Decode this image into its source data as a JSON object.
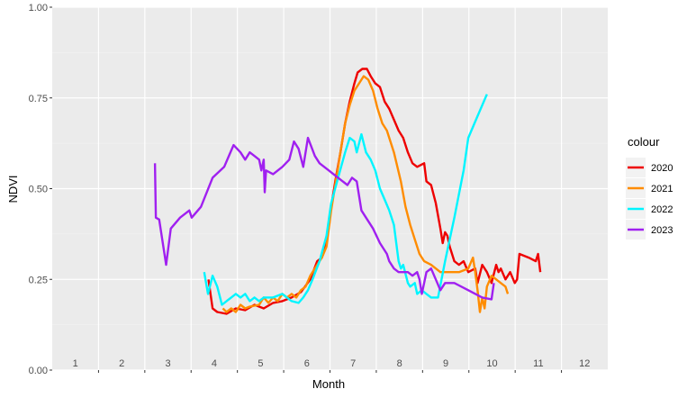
{
  "chart_data": {
    "type": "line",
    "ylabel": "NDVI",
    "xlabel": "Month",
    "ylim": [
      0.0,
      1.0
    ],
    "y_ticks": [
      {
        "value": 0.0,
        "label": "0.00"
      },
      {
        "value": 0.25,
        "label": "0.25"
      },
      {
        "value": 0.5,
        "label": "0.50"
      },
      {
        "value": 0.75,
        "label": "0.75"
      },
      {
        "value": 1.0,
        "label": "1.00"
      }
    ],
    "month_labels": [
      "1",
      "2",
      "3",
      "4",
      "5",
      "6",
      "7",
      "8",
      "9",
      "10",
      "11",
      "12"
    ],
    "xlim": [
      0.05,
      12.0
    ],
    "grid": true,
    "background": "#ebebeb",
    "legend": {
      "title": "colour",
      "position": "right"
    },
    "series": [
      {
        "name": "2020",
        "color": "#ee0000",
        "points": [
          [
            3.41,
            0.25
          ],
          [
            3.5,
            0.17
          ],
          [
            3.6,
            0.16
          ],
          [
            3.8,
            0.155
          ],
          [
            4.0,
            0.17
          ],
          [
            4.2,
            0.165
          ],
          [
            4.4,
            0.18
          ],
          [
            4.6,
            0.17
          ],
          [
            4.8,
            0.185
          ],
          [
            5.0,
            0.19
          ],
          [
            5.2,
            0.2
          ],
          [
            5.4,
            0.215
          ],
          [
            5.6,
            0.25
          ],
          [
            5.75,
            0.3
          ],
          [
            5.85,
            0.31
          ],
          [
            5.95,
            0.36
          ],
          [
            6.05,
            0.45
          ],
          [
            6.15,
            0.53
          ],
          [
            6.25,
            0.6
          ],
          [
            6.35,
            0.68
          ],
          [
            6.45,
            0.74
          ],
          [
            6.55,
            0.79
          ],
          [
            6.62,
            0.82
          ],
          [
            6.72,
            0.83
          ],
          [
            6.82,
            0.83
          ],
          [
            6.9,
            0.81
          ],
          [
            7.0,
            0.79
          ],
          [
            7.1,
            0.78
          ],
          [
            7.2,
            0.74
          ],
          [
            7.3,
            0.72
          ],
          [
            7.4,
            0.69
          ],
          [
            7.5,
            0.66
          ],
          [
            7.6,
            0.64
          ],
          [
            7.7,
            0.6
          ],
          [
            7.8,
            0.57
          ],
          [
            7.9,
            0.56
          ],
          [
            8.05,
            0.57
          ],
          [
            8.1,
            0.52
          ],
          [
            8.2,
            0.51
          ],
          [
            8.3,
            0.46
          ],
          [
            8.4,
            0.39
          ],
          [
            8.45,
            0.35
          ],
          [
            8.5,
            0.38
          ],
          [
            8.55,
            0.37
          ],
          [
            8.6,
            0.34
          ],
          [
            8.7,
            0.3
          ],
          [
            8.8,
            0.29
          ],
          [
            8.9,
            0.3
          ],
          [
            9.0,
            0.27
          ],
          [
            9.15,
            0.28
          ],
          [
            9.2,
            0.24
          ],
          [
            9.3,
            0.29
          ],
          [
            9.4,
            0.27
          ],
          [
            9.5,
            0.24
          ],
          [
            9.6,
            0.29
          ],
          [
            9.65,
            0.27
          ],
          [
            9.7,
            0.28
          ],
          [
            9.8,
            0.25
          ],
          [
            9.9,
            0.27
          ],
          [
            10.0,
            0.24
          ],
          [
            10.05,
            0.25
          ],
          [
            10.1,
            0.32
          ],
          [
            10.3,
            0.31
          ],
          [
            10.45,
            0.3
          ],
          [
            10.5,
            0.32
          ],
          [
            10.55,
            0.27
          ]
        ]
      },
      {
        "name": "2021",
        "color": "#ff8c00",
        "points": [
          [
            3.72,
            0.17
          ],
          [
            3.8,
            0.16
          ],
          [
            3.9,
            0.17
          ],
          [
            4.0,
            0.16
          ],
          [
            4.1,
            0.18
          ],
          [
            4.2,
            0.17
          ],
          [
            4.3,
            0.175
          ],
          [
            4.5,
            0.18
          ],
          [
            4.6,
            0.2
          ],
          [
            4.7,
            0.185
          ],
          [
            4.8,
            0.2
          ],
          [
            4.9,
            0.19
          ],
          [
            5.0,
            0.21
          ],
          [
            5.1,
            0.2
          ],
          [
            5.2,
            0.21
          ],
          [
            5.3,
            0.2
          ],
          [
            5.4,
            0.22
          ],
          [
            5.5,
            0.23
          ],
          [
            5.6,
            0.26
          ],
          [
            5.75,
            0.29
          ],
          [
            5.85,
            0.31
          ],
          [
            5.95,
            0.34
          ],
          [
            6.05,
            0.44
          ],
          [
            6.15,
            0.52
          ],
          [
            6.25,
            0.6
          ],
          [
            6.35,
            0.68
          ],
          [
            6.45,
            0.73
          ],
          [
            6.55,
            0.77
          ],
          [
            6.65,
            0.79
          ],
          [
            6.75,
            0.81
          ],
          [
            6.85,
            0.8
          ],
          [
            6.95,
            0.77
          ],
          [
            7.05,
            0.72
          ],
          [
            7.15,
            0.68
          ],
          [
            7.25,
            0.66
          ],
          [
            7.4,
            0.6
          ],
          [
            7.55,
            0.52
          ],
          [
            7.65,
            0.45
          ],
          [
            7.75,
            0.4
          ],
          [
            7.85,
            0.36
          ],
          [
            7.95,
            0.32
          ],
          [
            8.05,
            0.3
          ],
          [
            8.2,
            0.29
          ],
          [
            8.4,
            0.27
          ],
          [
            8.6,
            0.27
          ],
          [
            8.8,
            0.27
          ],
          [
            9.0,
            0.28
          ],
          [
            9.1,
            0.31
          ],
          [
            9.15,
            0.27
          ],
          [
            9.2,
            0.22
          ],
          [
            9.25,
            0.16
          ],
          [
            9.3,
            0.2
          ],
          [
            9.35,
            0.17
          ],
          [
            9.4,
            0.23
          ],
          [
            9.5,
            0.26
          ],
          [
            9.6,
            0.25
          ],
          [
            9.7,
            0.24
          ],
          [
            9.8,
            0.23
          ],
          [
            9.85,
            0.21
          ]
        ]
      },
      {
        "name": "2022",
        "color": "#00f5ff",
        "points": [
          [
            3.32,
            0.27
          ],
          [
            3.4,
            0.21
          ],
          [
            3.5,
            0.26
          ],
          [
            3.6,
            0.23
          ],
          [
            3.7,
            0.18
          ],
          [
            3.8,
            0.19
          ],
          [
            3.9,
            0.2
          ],
          [
            4.0,
            0.21
          ],
          [
            4.1,
            0.2
          ],
          [
            4.2,
            0.21
          ],
          [
            4.3,
            0.19
          ],
          [
            4.4,
            0.2
          ],
          [
            4.5,
            0.19
          ],
          [
            4.6,
            0.2
          ],
          [
            4.8,
            0.2
          ],
          [
            5.0,
            0.21
          ],
          [
            5.1,
            0.2
          ],
          [
            5.2,
            0.19
          ],
          [
            5.35,
            0.185
          ],
          [
            5.45,
            0.2
          ],
          [
            5.55,
            0.22
          ],
          [
            5.65,
            0.25
          ],
          [
            5.8,
            0.3
          ],
          [
            5.95,
            0.37
          ],
          [
            6.05,
            0.46
          ],
          [
            6.2,
            0.53
          ],
          [
            6.35,
            0.6
          ],
          [
            6.45,
            0.64
          ],
          [
            6.55,
            0.63
          ],
          [
            6.6,
            0.6
          ],
          [
            6.7,
            0.65
          ],
          [
            6.8,
            0.6
          ],
          [
            6.9,
            0.58
          ],
          [
            7.0,
            0.55
          ],
          [
            7.1,
            0.5
          ],
          [
            7.2,
            0.47
          ],
          [
            7.3,
            0.44
          ],
          [
            7.4,
            0.4
          ],
          [
            7.5,
            0.3
          ],
          [
            7.55,
            0.28
          ],
          [
            7.6,
            0.29
          ],
          [
            7.7,
            0.24
          ],
          [
            7.75,
            0.23
          ],
          [
            7.85,
            0.24
          ],
          [
            7.9,
            0.21
          ],
          [
            8.0,
            0.22
          ],
          [
            8.1,
            0.21
          ],
          [
            8.2,
            0.2
          ],
          [
            8.35,
            0.2
          ],
          [
            8.5,
            0.3
          ],
          [
            8.7,
            0.42
          ],
          [
            8.9,
            0.55
          ],
          [
            9.0,
            0.64
          ],
          [
            9.2,
            0.7
          ],
          [
            9.4,
            0.76
          ]
        ]
      },
      {
        "name": "2023",
        "color": "#a020f0",
        "points": [
          [
            2.26,
            0.57
          ],
          [
            2.28,
            0.42
          ],
          [
            2.35,
            0.415
          ],
          [
            2.5,
            0.29
          ],
          [
            2.6,
            0.39
          ],
          [
            2.8,
            0.42
          ],
          [
            3.0,
            0.44
          ],
          [
            3.05,
            0.42
          ],
          [
            3.25,
            0.45
          ],
          [
            3.5,
            0.53
          ],
          [
            3.75,
            0.56
          ],
          [
            3.95,
            0.62
          ],
          [
            4.1,
            0.6
          ],
          [
            4.2,
            0.58
          ],
          [
            4.3,
            0.6
          ],
          [
            4.4,
            0.59
          ],
          [
            4.5,
            0.58
          ],
          [
            4.55,
            0.55
          ],
          [
            4.6,
            0.58
          ],
          [
            4.62,
            0.49
          ],
          [
            4.65,
            0.55
          ],
          [
            4.8,
            0.54
          ],
          [
            5.0,
            0.56
          ],
          [
            5.15,
            0.58
          ],
          [
            5.25,
            0.63
          ],
          [
            5.35,
            0.61
          ],
          [
            5.45,
            0.56
          ],
          [
            5.55,
            0.64
          ],
          [
            5.7,
            0.59
          ],
          [
            5.8,
            0.57
          ],
          [
            6.0,
            0.55
          ],
          [
            6.2,
            0.53
          ],
          [
            6.4,
            0.51
          ],
          [
            6.5,
            0.53
          ],
          [
            6.6,
            0.52
          ],
          [
            6.7,
            0.44
          ],
          [
            6.8,
            0.42
          ],
          [
            6.95,
            0.39
          ],
          [
            7.1,
            0.35
          ],
          [
            7.25,
            0.32
          ],
          [
            7.3,
            0.3
          ],
          [
            7.4,
            0.28
          ],
          [
            7.5,
            0.27
          ],
          [
            7.7,
            0.27
          ],
          [
            7.8,
            0.26
          ],
          [
            7.9,
            0.27
          ],
          [
            7.95,
            0.25
          ],
          [
            8.0,
            0.21
          ],
          [
            8.1,
            0.27
          ],
          [
            8.2,
            0.28
          ],
          [
            8.3,
            0.25
          ],
          [
            8.4,
            0.22
          ],
          [
            8.5,
            0.24
          ],
          [
            8.7,
            0.24
          ],
          [
            9.0,
            0.22
          ],
          [
            9.3,
            0.2
          ],
          [
            9.5,
            0.195
          ],
          [
            9.55,
            0.24
          ]
        ]
      }
    ]
  }
}
